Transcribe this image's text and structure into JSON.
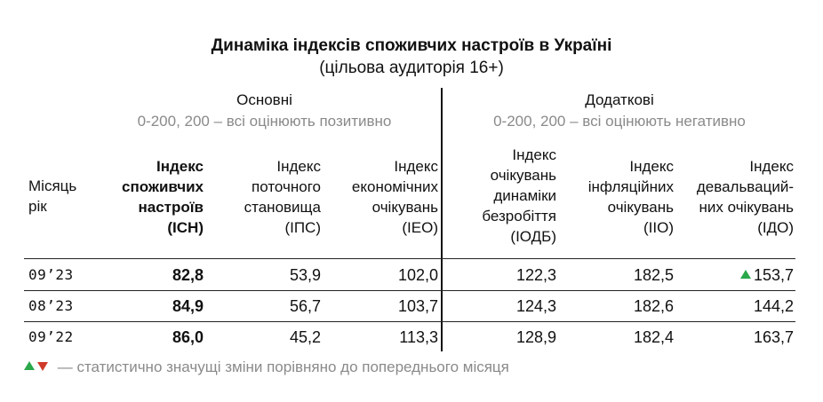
{
  "title": "Динаміка індексів споживчих настроїв в Україні",
  "subtitle": "(цільова аудиторія 16+)",
  "groups": {
    "main": {
      "label": "Основні",
      "range": "0-200, 200 – всі оцінюють позитивно"
    },
    "additional": {
      "label": "Додаткові",
      "range": "0-200, 200 – всі оцінюють негативно"
    }
  },
  "columns": {
    "month": [
      "Місяць",
      "рік"
    ],
    "ich": [
      "Індекс",
      "споживчих",
      "настроїв",
      "(ІСН)"
    ],
    "ips": [
      "Індекс",
      "поточного",
      "становища",
      "(ІПС)"
    ],
    "ieo": [
      "Індекс",
      "економічних",
      "очікувань",
      "(ІЕО)"
    ],
    "iodb": [
      "Індекс",
      "очікувань",
      "динаміки",
      "безробіття",
      "(ІОДБ)"
    ],
    "iio": [
      "Індекс",
      "інфляційних",
      "очікувань",
      "(ІІО)"
    ],
    "ido": [
      "Індекс",
      "девальваций-",
      "них очікувань",
      "(ІДО)"
    ]
  },
  "rows": [
    {
      "month": "09’23",
      "ich": "82,8",
      "ips": "53,9",
      "ieo": "102,0",
      "iodb": "122,3",
      "iio": "182,5",
      "ido": "153,7"
    },
    {
      "month": "08’23",
      "ich": "84,9",
      "ips": "56,7",
      "ieo": "103,7",
      "iodb": "124,3",
      "iio": "182,6",
      "ido": "144,2"
    },
    {
      "month": "09’22",
      "ich": "86,0",
      "ips": "45,2",
      "ieo": "113,3",
      "iodb": "128,9",
      "iio": "182,4",
      "ido": "163,7"
    }
  ],
  "colors": {
    "up": "#2aa84a",
    "down": "#d03a2a",
    "muted": "#8a8a8a"
  },
  "footnote": "— статистично значущі зміни порівняно до попереднього місяця"
}
